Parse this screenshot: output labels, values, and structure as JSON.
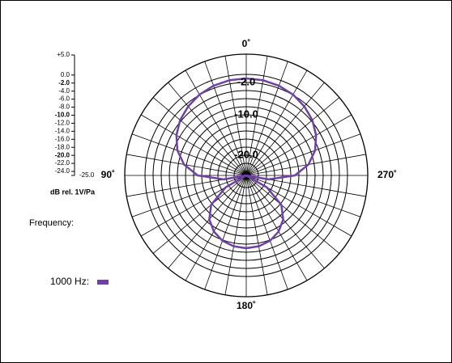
{
  "chart_data": {
    "type": "polar",
    "radial_axis_label": "dB rel. 1V/Pa",
    "legend_title": "Frequency:",
    "rlim": [
      -25,
      5
    ],
    "rticks": [
      {
        "value": 5,
        "label": "+5.0"
      },
      {
        "value": 0,
        "label": "0.0"
      },
      {
        "value": -2,
        "label": "-2.0"
      },
      {
        "value": -4,
        "label": "-4.0"
      },
      {
        "value": -6,
        "label": "-6.0"
      },
      {
        "value": -8,
        "label": "-8.0"
      },
      {
        "value": -10,
        "label": "-10.0"
      },
      {
        "value": -12,
        "label": "-12.0"
      },
      {
        "value": -14,
        "label": "-14.0"
      },
      {
        "value": -16,
        "label": "-16.0"
      },
      {
        "value": -18,
        "label": "-18.0"
      },
      {
        "value": -20,
        "label": "-20.0"
      },
      {
        "value": -22,
        "label": "-22.0"
      },
      {
        "value": -24,
        "label": "-24.0"
      },
      {
        "value": -25,
        "label": "-25.0"
      }
    ],
    "ring_labels": [
      {
        "value": -2,
        "label": "-2.0"
      },
      {
        "value": -10,
        "label": "-10.0"
      },
      {
        "value": -20,
        "label": "-20.0"
      }
    ],
    "theta_labels": [
      {
        "value": 0,
        "label": "0˚"
      },
      {
        "value": 90,
        "label": "90˚"
      },
      {
        "value": 180,
        "label": "180˚"
      },
      {
        "value": 270,
        "label": "270˚"
      }
    ],
    "theta": [
      0,
      10,
      20,
      30,
      40,
      50,
      60,
      70,
      80,
      90,
      100,
      110,
      120,
      130,
      140,
      150,
      160,
      170,
      180,
      190,
      200,
      210,
      220,
      230,
      240,
      250,
      260,
      270,
      280,
      290,
      300,
      310,
      320,
      330,
      340,
      350
    ],
    "series": [
      {
        "name": "1000 Hz:",
        "color": "#7040a8",
        "values": [
          -1,
          -1.1,
          -1.4,
          -1.9,
          -2.7,
          -3.7,
          -5.1,
          -6.9,
          -9.4,
          -13,
          -19.4,
          -25,
          -19.1,
          -13.7,
          -10.8,
          -9,
          -7.8,
          -7.2,
          -7,
          -7.2,
          -7.8,
          -9,
          -10.8,
          -13.7,
          -19.1,
          -25,
          -19.4,
          -13,
          -9.4,
          -6.9,
          -5.1,
          -3.7,
          -2.7,
          -1.9,
          -1.4,
          -1.1
        ]
      }
    ]
  }
}
